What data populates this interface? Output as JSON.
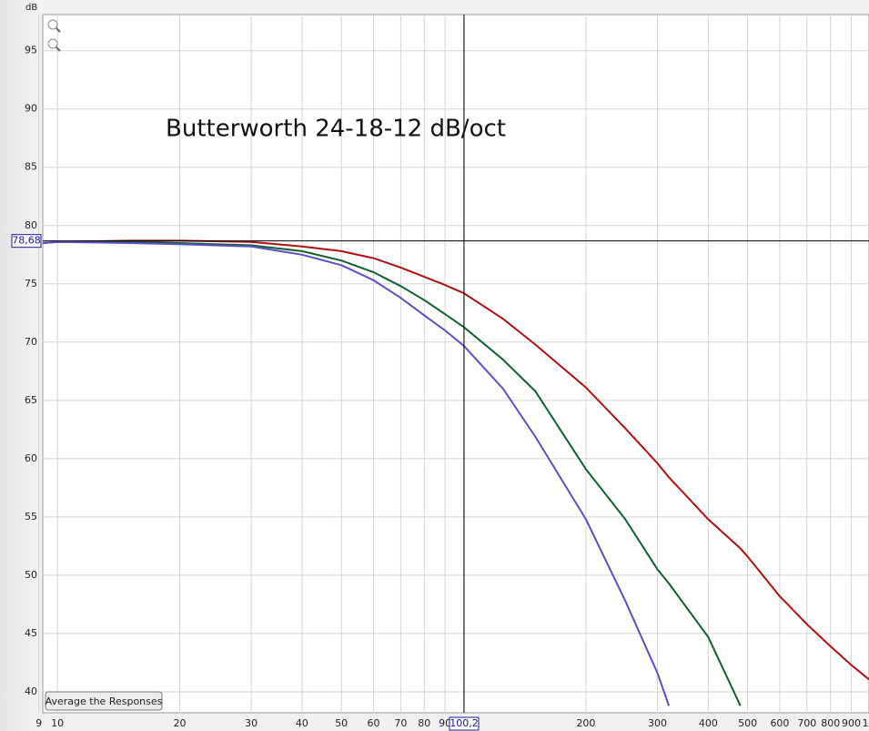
{
  "chart_data": {
    "type": "line",
    "title": "Butterworth 24-18-12 dB/oct",
    "y_label": "dB",
    "x_scale": "log",
    "grid": true,
    "button": "Average the Responses",
    "xlim": [
      9.2,
      995
    ],
    "ylim": [
      38.2,
      98.1
    ],
    "xticks": [
      9,
      10,
      20,
      30,
      40,
      50,
      60,
      70,
      80,
      90,
      100,
      200,
      300,
      400,
      500,
      600,
      700,
      800,
      900,
      {
        "value": 1000,
        "label": "1"
      }
    ],
    "yticks": [
      40,
      45,
      50,
      55,
      60,
      65,
      70,
      75,
      80,
      85,
      90,
      95
    ],
    "cursor": {
      "x": 100.2,
      "x_label": "100,2",
      "y": 78.68,
      "y_label": "78,68"
    },
    "x": [
      9.2,
      10,
      15,
      20,
      30,
      40,
      50,
      60,
      70,
      80,
      90,
      100,
      125,
      150,
      200,
      250,
      300,
      320,
      400,
      480,
      500,
      600,
      700,
      800,
      900,
      1000
    ],
    "series": [
      {
        "color": "#b01010",
        "values": [
          78.5,
          78.6,
          78.7,
          78.7,
          78.6,
          78.2,
          77.8,
          77.2,
          76.4,
          75.6,
          74.9,
          74.2,
          72.0,
          69.8,
          66.1,
          62.6,
          59.6,
          58.4,
          54.8,
          52.3,
          51.6,
          48.2,
          45.8,
          43.9,
          42.3,
          41.0
        ]
      },
      {
        "color": "#106030",
        "values": [
          78.5,
          78.6,
          78.6,
          78.5,
          78.3,
          77.8,
          77.0,
          76.0,
          74.8,
          73.6,
          72.4,
          71.3,
          68.5,
          65.8,
          59.1,
          54.8,
          50.5,
          49.3,
          44.7,
          38.8,
          null,
          null,
          null,
          null,
          null,
          null
        ]
      },
      {
        "color": "#5a4fc8",
        "values": [
          78.5,
          78.6,
          78.5,
          78.4,
          78.2,
          77.5,
          76.6,
          75.3,
          73.8,
          72.3,
          71.0,
          69.7,
          66.0,
          61.9,
          54.8,
          47.8,
          41.6,
          38.8,
          null,
          null,
          null,
          null,
          null,
          null,
          null,
          null
        ]
      }
    ]
  }
}
